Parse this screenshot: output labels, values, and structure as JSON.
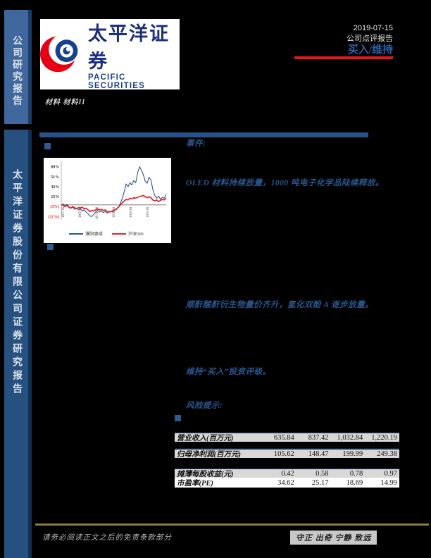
{
  "colors": {
    "accent_red": "#e8151d",
    "rating_blue": "#2d5fa6",
    "body_blue": "#28568e",
    "sidebar_top": "#41689c",
    "sidebar_bottom": "#26507f"
  },
  "sidebar": {
    "top_label": "公司研究报告",
    "bottom_label": "太平洋证券股份有限公司证券研究报告"
  },
  "header": {
    "logo_cn": "太平洋证券",
    "logo_en": "PACIFIC SECURITIES",
    "sector": "材料 材料II",
    "date": "2019-07-15",
    "report_type": "公司点评报告",
    "rating": "买入/维持"
  },
  "body": {
    "event_label": "事件:",
    "point1": "OLED 材料持续放量，1000 吨电子化学品陆续释放。",
    "point2": "顺酐酸酐衍生物量价齐升，氢化双酚 A 逐步放量。",
    "point3": "维持“买入”投资评级。",
    "risk_label": "风险提示:"
  },
  "chart_data": {
    "type": "line",
    "title": "",
    "xlabel": "",
    "ylabel": "",
    "ylim": [
      -27,
      75
    ],
    "yticks": [
      69,
      51,
      33,
      15,
      -3,
      -21
    ],
    "ytick_labels": [
      "69%",
      "51%",
      "33%",
      "15%",
      "(3%)",
      "(21%)"
    ],
    "negative_tick_color": "#e0242c",
    "xtick_labels": [
      "18/7/16",
      "18/9/16",
      "18/11/16",
      "19/1/16",
      "19/3/16",
      "19/5/16"
    ],
    "grid": false,
    "legend_position": "bottom",
    "series": [
      {
        "name": "濮阳惠成",
        "color": "#34558b",
        "width": 1.1,
        "values": [
          0,
          2,
          -1,
          1,
          -3,
          -6,
          -4,
          -8,
          -6,
          -9,
          -7,
          -11,
          -9,
          -13,
          -16,
          -20,
          -21,
          -17,
          -13,
          -10,
          -13,
          -11,
          -14,
          -12,
          -15,
          -13,
          -11,
          -13,
          -10,
          -8,
          -4,
          3,
          12,
          24,
          38,
          33,
          40,
          36,
          44,
          40,
          58,
          69,
          63,
          55,
          43,
          39,
          50,
          45,
          28,
          17,
          12,
          16,
          10,
          14,
          12,
          19
        ]
      },
      {
        "name": "沪深300",
        "color": "#e0242c",
        "width": 1.7,
        "values": [
          0,
          -1,
          -3,
          -1,
          -4,
          -6,
          -3,
          -5,
          -7,
          -5,
          -6,
          -4,
          -7,
          -6,
          -9,
          -12,
          -10,
          -11,
          -9,
          -7,
          -9,
          -8,
          -10,
          -9,
          -12,
          -13,
          -12,
          -11,
          -9,
          -7,
          -4,
          0,
          4,
          7,
          10,
          9,
          12,
          11,
          13,
          12,
          14,
          15,
          16,
          17,
          15,
          13,
          15,
          13,
          9,
          7,
          9,
          6,
          8,
          10,
          9,
          12
        ]
      }
    ]
  },
  "table": {
    "rows": [
      {
        "label": "营业收入(百万元)",
        "values": [
          "635.84",
          "837.42",
          "1,032.84",
          "1,220.19"
        ]
      },
      {
        "label": "归母净利润(百万元)",
        "values": [
          "105.62",
          "148.47",
          "199.99",
          "249.38"
        ]
      },
      {
        "label": "摊薄每股收益(元)",
        "values": [
          "0.42",
          "0.58",
          "0.78",
          "0.97"
        ]
      },
      {
        "label": "市盈率(PE)",
        "values": [
          "34.62",
          "25.17",
          "18.69",
          "14.99"
        ]
      }
    ]
  },
  "footer": {
    "disclaimer": "请务必阅读正文之后的免责条款部分",
    "motto": "守正 出奇 宁静 致远"
  }
}
